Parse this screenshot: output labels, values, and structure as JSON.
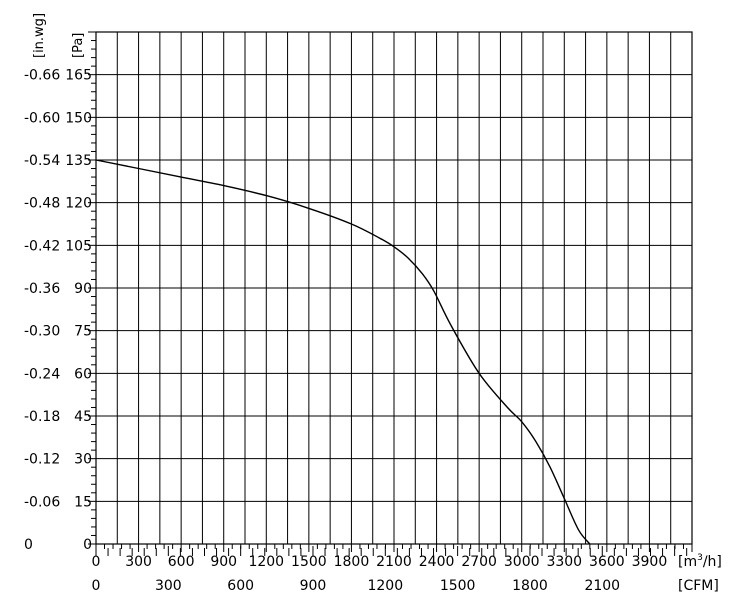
{
  "chart_data": {
    "type": "line",
    "title": "",
    "x_primary": {
      "unit_prefix": "[m",
      "unit_sup": "3",
      "unit_suffix": "/h]",
      "range": [
        0,
        4200
      ],
      "ticks": [
        "0",
        "300",
        "600",
        "900",
        "1200",
        "1500",
        "1800",
        "2100",
        "2400",
        "2700",
        "3000",
        "3300",
        "3600",
        "3900"
      ],
      "tick_values": [
        0,
        300,
        600,
        900,
        1200,
        1500,
        1800,
        2100,
        2400,
        2700,
        3000,
        3300,
        3600,
        3900
      ]
    },
    "x_secondary": {
      "unit": "[CFM]",
      "ticks": [
        "0",
        "300",
        "600",
        "900",
        "1200",
        "1500",
        "1800",
        "2100"
      ],
      "tick_values": [
        0,
        300,
        600,
        900,
        1200,
        1500,
        1800,
        2100
      ],
      "cfm_per_m3h": 0.5886
    },
    "y_primary": {
      "unit": "[Pa]",
      "range": [
        0,
        180
      ],
      "ticks": [
        "0",
        "15",
        "30",
        "45",
        "60",
        "75",
        "90",
        "105",
        "120",
        "135",
        "150",
        "165"
      ],
      "tick_values": [
        0,
        15,
        30,
        45,
        60,
        75,
        90,
        105,
        120,
        135,
        150,
        165
      ]
    },
    "y_secondary": {
      "unit": "[in.wg]",
      "ticks": [
        "0",
        "0.06",
        "0.12",
        "0.18",
        "0.24",
        "0.30",
        "0.36",
        "0.42",
        "0.48",
        "0.54",
        "0.60",
        "0.66"
      ]
    },
    "grid": true,
    "series": [
      {
        "x": [
          0,
          300,
          600,
          900,
          1200,
          1500,
          1800,
          2000,
          2100,
          2200,
          2300,
          2380,
          2500,
          2700,
          2900,
          3000,
          3100,
          3200,
          3300,
          3400,
          3480
        ],
        "y": [
          135,
          132,
          129,
          126,
          122.5,
          118,
          112.5,
          107.5,
          104.5,
          100.5,
          95,
          89,
          77,
          60,
          48,
          43,
          36,
          27,
          16,
          5,
          0
        ]
      }
    ]
  }
}
